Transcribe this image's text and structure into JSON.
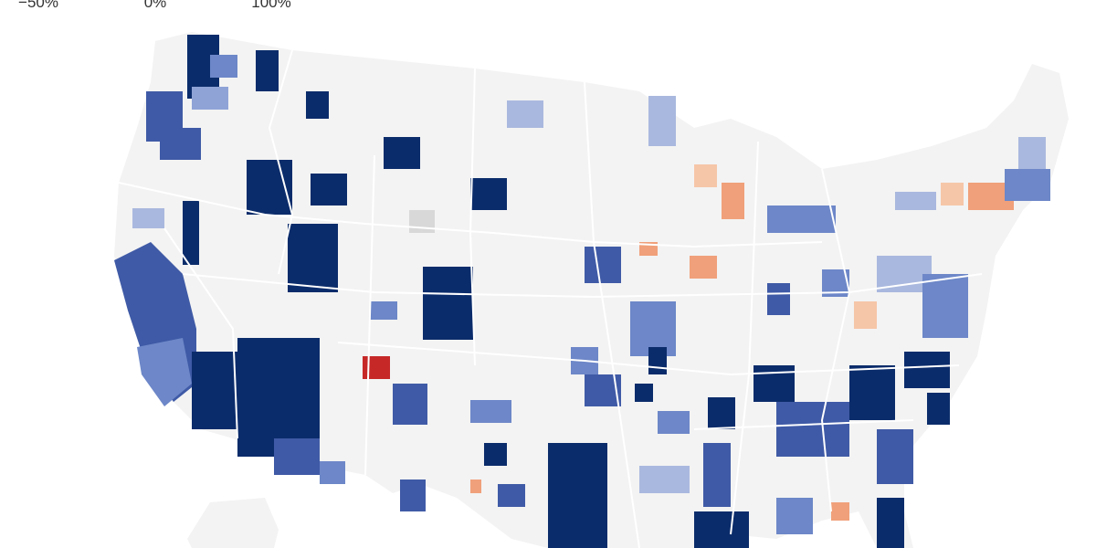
{
  "legend": {
    "labels": [
      "−50%",
      "0%",
      "100%"
    ]
  }
}
